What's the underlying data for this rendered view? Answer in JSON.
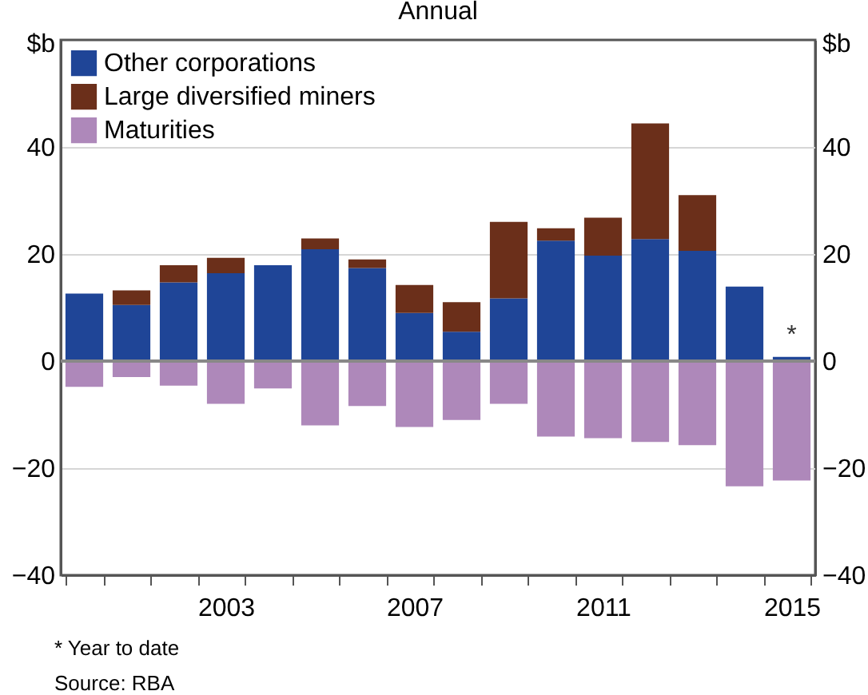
{
  "chart_data": {
    "type": "bar",
    "title": "Annual",
    "ylabel": "$b",
    "y2label": "$b",
    "categories": [
      null,
      null,
      null,
      "2003",
      null,
      null,
      null,
      "2007",
      null,
      null,
      null,
      "2011",
      null,
      null,
      null,
      "2015"
    ],
    "stacked": true,
    "series": [
      {
        "name": "Other corporations",
        "color": "#1f4597",
        "values": [
          12.6,
          10.5,
          14.7,
          16.4,
          17.9,
          20.9,
          17.4,
          9.0,
          5.5,
          11.7,
          22.5,
          19.7,
          22.8,
          20.6,
          13.9,
          0.8
        ]
      },
      {
        "name": "Large diversified miners",
        "color": "#6b2f1a",
        "values": [
          null,
          2.7,
          3.2,
          2.9,
          null,
          2.0,
          1.6,
          5.2,
          5.5,
          14.3,
          2.3,
          7.1,
          21.6,
          10.4,
          null,
          null
        ]
      },
      {
        "name": "Maturities",
        "color": "#ae88ba",
        "values": [
          -4.8,
          -3.0,
          -4.6,
          -8.0,
          -5.1,
          -12.0,
          -8.4,
          -12.3,
          -11.0,
          -8.0,
          -14.1,
          -14.4,
          -15.1,
          -15.7,
          -23.4,
          -22.3
        ]
      }
    ],
    "ylim": [
      -40,
      60
    ],
    "yticks": [
      -40,
      -20,
      0,
      20,
      40
    ],
    "y2lim": [
      -40,
      60
    ],
    "y2ticks": [
      -40,
      -20,
      0,
      20,
      40
    ],
    "ref_lines": [
      {
        "axis": "y",
        "value": 0,
        "color": "#888888"
      }
    ],
    "grid": "y",
    "legend": "top left",
    "annotations": [
      {
        "text": "*",
        "x": "2015",
        "y": 0.8
      },
      "*      Year to date",
      "Source:    RBA"
    ]
  }
}
